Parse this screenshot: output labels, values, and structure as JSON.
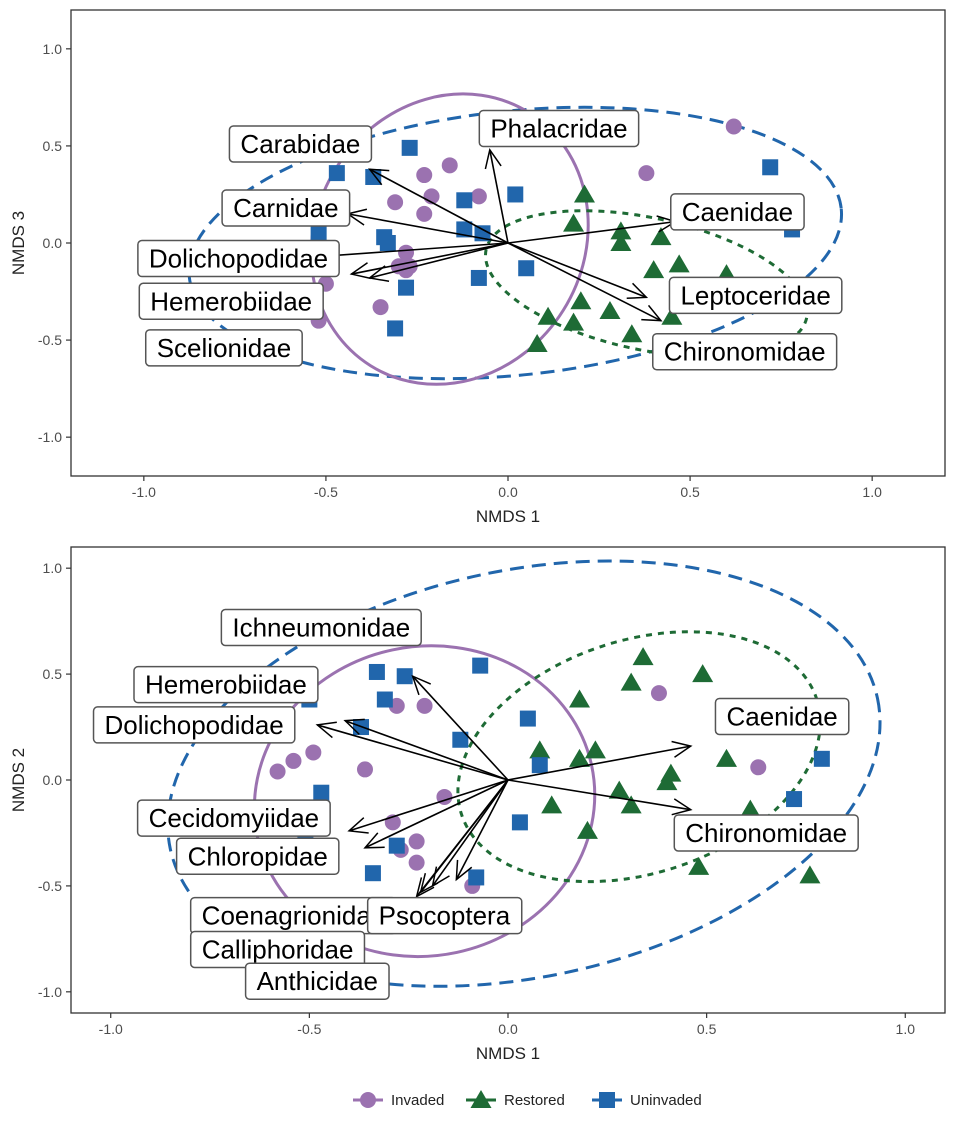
{
  "colors": {
    "invaded": "#9b72b0",
    "restored": "#1e6b35",
    "uninvaded": "#2166ac",
    "arrow": "#000000",
    "frame": "#333333"
  },
  "legend": {
    "items": [
      {
        "key": "invaded",
        "label": "Invaded",
        "shape": "circle"
      },
      {
        "key": "restored",
        "label": "Restored",
        "shape": "triangle"
      },
      {
        "key": "uninvaded",
        "label": "Uninvaded",
        "shape": "square"
      }
    ]
  },
  "chart_data": [
    {
      "type": "scatter",
      "xlabel": "NMDS 1",
      "ylabel": "NMDS 3",
      "xlim": [
        -1.2,
        1.2
      ],
      "ylim": [
        -1.2,
        1.2
      ],
      "xticks": [
        "-1.0",
        "-0.5",
        "0.0",
        "0.5",
        "1.0"
      ],
      "yticks": [
        "1.0",
        "0.5",
        "0.0",
        "-0.5",
        "-1.0"
      ],
      "grid": false,
      "series": [
        {
          "name": "Invaded",
          "key": "invaded",
          "points": [
            [
              0.62,
              0.6
            ],
            [
              0.38,
              0.36
            ],
            [
              -0.16,
              0.4
            ],
            [
              -0.23,
              0.35
            ],
            [
              -0.21,
              0.24
            ],
            [
              -0.08,
              0.24
            ],
            [
              -0.31,
              0.21
            ],
            [
              -0.23,
              0.15
            ],
            [
              -0.28,
              -0.05
            ],
            [
              -0.3,
              -0.12
            ],
            [
              -0.28,
              -0.14
            ],
            [
              -0.27,
              -0.12
            ],
            [
              -0.5,
              -0.21
            ],
            [
              -0.35,
              -0.33
            ],
            [
              -0.52,
              -0.4
            ]
          ]
        },
        {
          "name": "Restored",
          "key": "restored",
          "points": [
            [
              0.21,
              0.25
            ],
            [
              0.18,
              0.1
            ],
            [
              0.31,
              0.06
            ],
            [
              0.31,
              0.0
            ],
            [
              0.42,
              0.03
            ],
            [
              0.47,
              -0.11
            ],
            [
              0.4,
              -0.14
            ],
            [
              0.6,
              -0.16
            ],
            [
              0.2,
              -0.3
            ],
            [
              0.28,
              -0.35
            ],
            [
              0.11,
              -0.38
            ],
            [
              0.18,
              -0.41
            ],
            [
              0.08,
              -0.52
            ],
            [
              0.34,
              -0.47
            ],
            [
              0.45,
              -0.38
            ]
          ]
        },
        {
          "name": "Uninvaded",
          "key": "uninvaded",
          "points": [
            [
              0.72,
              0.39
            ],
            [
              0.78,
              0.07
            ],
            [
              -0.27,
              0.49
            ],
            [
              -0.47,
              0.36
            ],
            [
              -0.37,
              0.34
            ],
            [
              0.02,
              0.25
            ],
            [
              -0.12,
              0.22
            ],
            [
              -0.12,
              0.07
            ],
            [
              -0.07,
              0.05
            ],
            [
              -0.52,
              0.05
            ],
            [
              -0.34,
              0.03
            ],
            [
              -0.33,
              0.0
            ],
            [
              -0.5,
              -0.13
            ],
            [
              0.05,
              -0.13
            ],
            [
              -0.08,
              -0.18
            ],
            [
              -0.28,
              -0.23
            ],
            [
              -0.31,
              -0.44
            ]
          ]
        }
      ],
      "ellipses": [
        {
          "key": "uninvaded",
          "style": "dashed",
          "cx": 0.02,
          "cy": 0.0,
          "rx": 0.9,
          "ry": 0.68,
          "angle": -6
        },
        {
          "key": "invaded",
          "style": "solid",
          "cx": -0.16,
          "cy": 0.02,
          "rx": 0.41,
          "ry": 0.69,
          "angle": -58
        },
        {
          "key": "restored",
          "style": "dotted",
          "cx": 0.38,
          "cy": -0.21,
          "rx": 0.45,
          "ry": 0.34,
          "angle": 12
        }
      ],
      "vectors": [
        {
          "label": "Phalacridae",
          "x": -0.05,
          "y": 0.48,
          "lx": 0.14,
          "ly": 0.59
        },
        {
          "label": "Carabidae",
          "x": -0.38,
          "y": 0.38,
          "lx": -0.57,
          "ly": 0.51
        },
        {
          "label": "Carnidae",
          "x": -0.44,
          "y": 0.15,
          "lx": -0.61,
          "ly": 0.18
        },
        {
          "label": "Caenidae",
          "x": 0.46,
          "y": 0.11,
          "lx": 0.63,
          "ly": 0.16
        },
        {
          "label": "Dolichopodidae",
          "x": -0.52,
          "y": -0.07,
          "lx": -0.74,
          "ly": -0.08
        },
        {
          "label": "Hemerobiidae",
          "x": -0.43,
          "y": -0.16,
          "lx": -0.76,
          "ly": -0.3
        },
        {
          "label": "Scelionidae",
          "x": -0.38,
          "y": -0.18,
          "lx": -0.78,
          "ly": -0.54
        },
        {
          "label": "Leptoceridae",
          "x": 0.38,
          "y": -0.28,
          "lx": 0.68,
          "ly": -0.27
        },
        {
          "label": "Chironomidae",
          "x": 0.42,
          "y": -0.4,
          "lx": 0.65,
          "ly": -0.56
        }
      ]
    },
    {
      "type": "scatter",
      "xlabel": "NMDS 1",
      "ylabel": "NMDS 2",
      "xlim": [
        -1.1,
        1.1
      ],
      "ylim": [
        -1.1,
        1.1
      ],
      "xticks": [
        "-1.0",
        "-0.5",
        "0.0",
        "0.5",
        "1.0"
      ],
      "yticks": [
        "1.0",
        "0.5",
        "0.0",
        "-0.5",
        "-1.0"
      ],
      "grid": false,
      "series": [
        {
          "name": "Invaded",
          "key": "invaded",
          "points": [
            [
              0.38,
              0.41
            ],
            [
              -0.28,
              0.35
            ],
            [
              -0.21,
              0.35
            ],
            [
              -0.49,
              0.13
            ],
            [
              -0.54,
              0.09
            ],
            [
              -0.58,
              0.04
            ],
            [
              -0.36,
              0.05
            ],
            [
              -0.16,
              -0.08
            ],
            [
              -0.29,
              -0.2
            ],
            [
              -0.27,
              -0.33
            ],
            [
              -0.23,
              -0.29
            ],
            [
              -0.23,
              -0.39
            ],
            [
              -0.09,
              -0.5
            ],
            [
              0.63,
              0.06
            ]
          ]
        },
        {
          "name": "Restored",
          "key": "restored",
          "points": [
            [
              0.34,
              0.58
            ],
            [
              0.31,
              0.46
            ],
            [
              0.49,
              0.5
            ],
            [
              0.18,
              0.38
            ],
            [
              0.08,
              0.14
            ],
            [
              0.22,
              0.14
            ],
            [
              0.18,
              0.1
            ],
            [
              0.55,
              0.1
            ],
            [
              0.41,
              0.03
            ],
            [
              0.4,
              -0.01
            ],
            [
              0.28,
              -0.05
            ],
            [
              0.31,
              -0.12
            ],
            [
              0.11,
              -0.12
            ],
            [
              0.2,
              -0.24
            ],
            [
              0.45,
              -0.29
            ],
            [
              0.48,
              -0.41
            ],
            [
              0.61,
              -0.14
            ],
            [
              0.76,
              -0.45
            ]
          ]
        },
        {
          "name": "Uninvaded",
          "key": "uninvaded",
          "points": [
            [
              -0.33,
              0.51
            ],
            [
              -0.26,
              0.49
            ],
            [
              -0.31,
              0.38
            ],
            [
              -0.07,
              0.54
            ],
            [
              -0.5,
              0.38
            ],
            [
              -0.37,
              0.25
            ],
            [
              0.05,
              0.29
            ],
            [
              -0.12,
              0.19
            ],
            [
              0.08,
              0.07
            ],
            [
              -0.47,
              -0.06
            ],
            [
              -0.51,
              -0.26
            ],
            [
              -0.28,
              -0.31
            ],
            [
              -0.34,
              -0.44
            ],
            [
              -0.08,
              -0.46
            ],
            [
              0.03,
              -0.2
            ],
            [
              0.72,
              -0.09
            ],
            [
              0.79,
              0.1
            ]
          ]
        }
      ],
      "ellipses": [
        {
          "key": "uninvaded",
          "style": "dashed",
          "cx": 0.04,
          "cy": 0.03,
          "rx": 0.91,
          "ry": 0.96,
          "angle": -12
        },
        {
          "key": "invaded",
          "style": "solid",
          "cx": -0.21,
          "cy": -0.1,
          "rx": 0.43,
          "ry": 0.73,
          "angle": -12
        },
        {
          "key": "restored",
          "style": "dotted",
          "cx": 0.33,
          "cy": 0.11,
          "rx": 0.47,
          "ry": 0.55,
          "angle": -18
        }
      ],
      "vectors": [
        {
          "label": "Ichneumonidae",
          "x": -0.24,
          "y": 0.49,
          "lx": -0.47,
          "ly": 0.72
        },
        {
          "label": "Hemerobiidae",
          "x": -0.41,
          "y": 0.28,
          "lx": -0.71,
          "ly": 0.45
        },
        {
          "label": "Dolichopodidae",
          "x": -0.48,
          "y": 0.26,
          "lx": -0.79,
          "ly": 0.26
        },
        {
          "label": "Caenidae",
          "x": 0.46,
          "y": 0.16,
          "lx": 0.69,
          "ly": 0.3
        },
        {
          "label": "Chironomidae",
          "x": 0.46,
          "y": -0.14,
          "lx": 0.65,
          "ly": -0.25
        },
        {
          "label": "Cecidomyiidae",
          "x": -0.4,
          "y": -0.24,
          "lx": -0.69,
          "ly": -0.18
        },
        {
          "label": "Chloropidae",
          "x": -0.36,
          "y": -0.32,
          "lx": -0.63,
          "ly": -0.36
        },
        {
          "label": "Coenagrionidae",
          "x": -0.22,
          "y": -0.53,
          "lx": -0.54,
          "ly": -0.64
        },
        {
          "label": "Psocoptera",
          "x": -0.13,
          "y": -0.47,
          "lx": -0.16,
          "ly": -0.64
        },
        {
          "label": "Calliphoridae",
          "x": -0.19,
          "y": -0.5,
          "lx": -0.58,
          "ly": -0.8
        },
        {
          "label": "Anthicidae",
          "x": -0.23,
          "y": -0.55,
          "lx": -0.48,
          "ly": -0.95
        }
      ]
    }
  ]
}
